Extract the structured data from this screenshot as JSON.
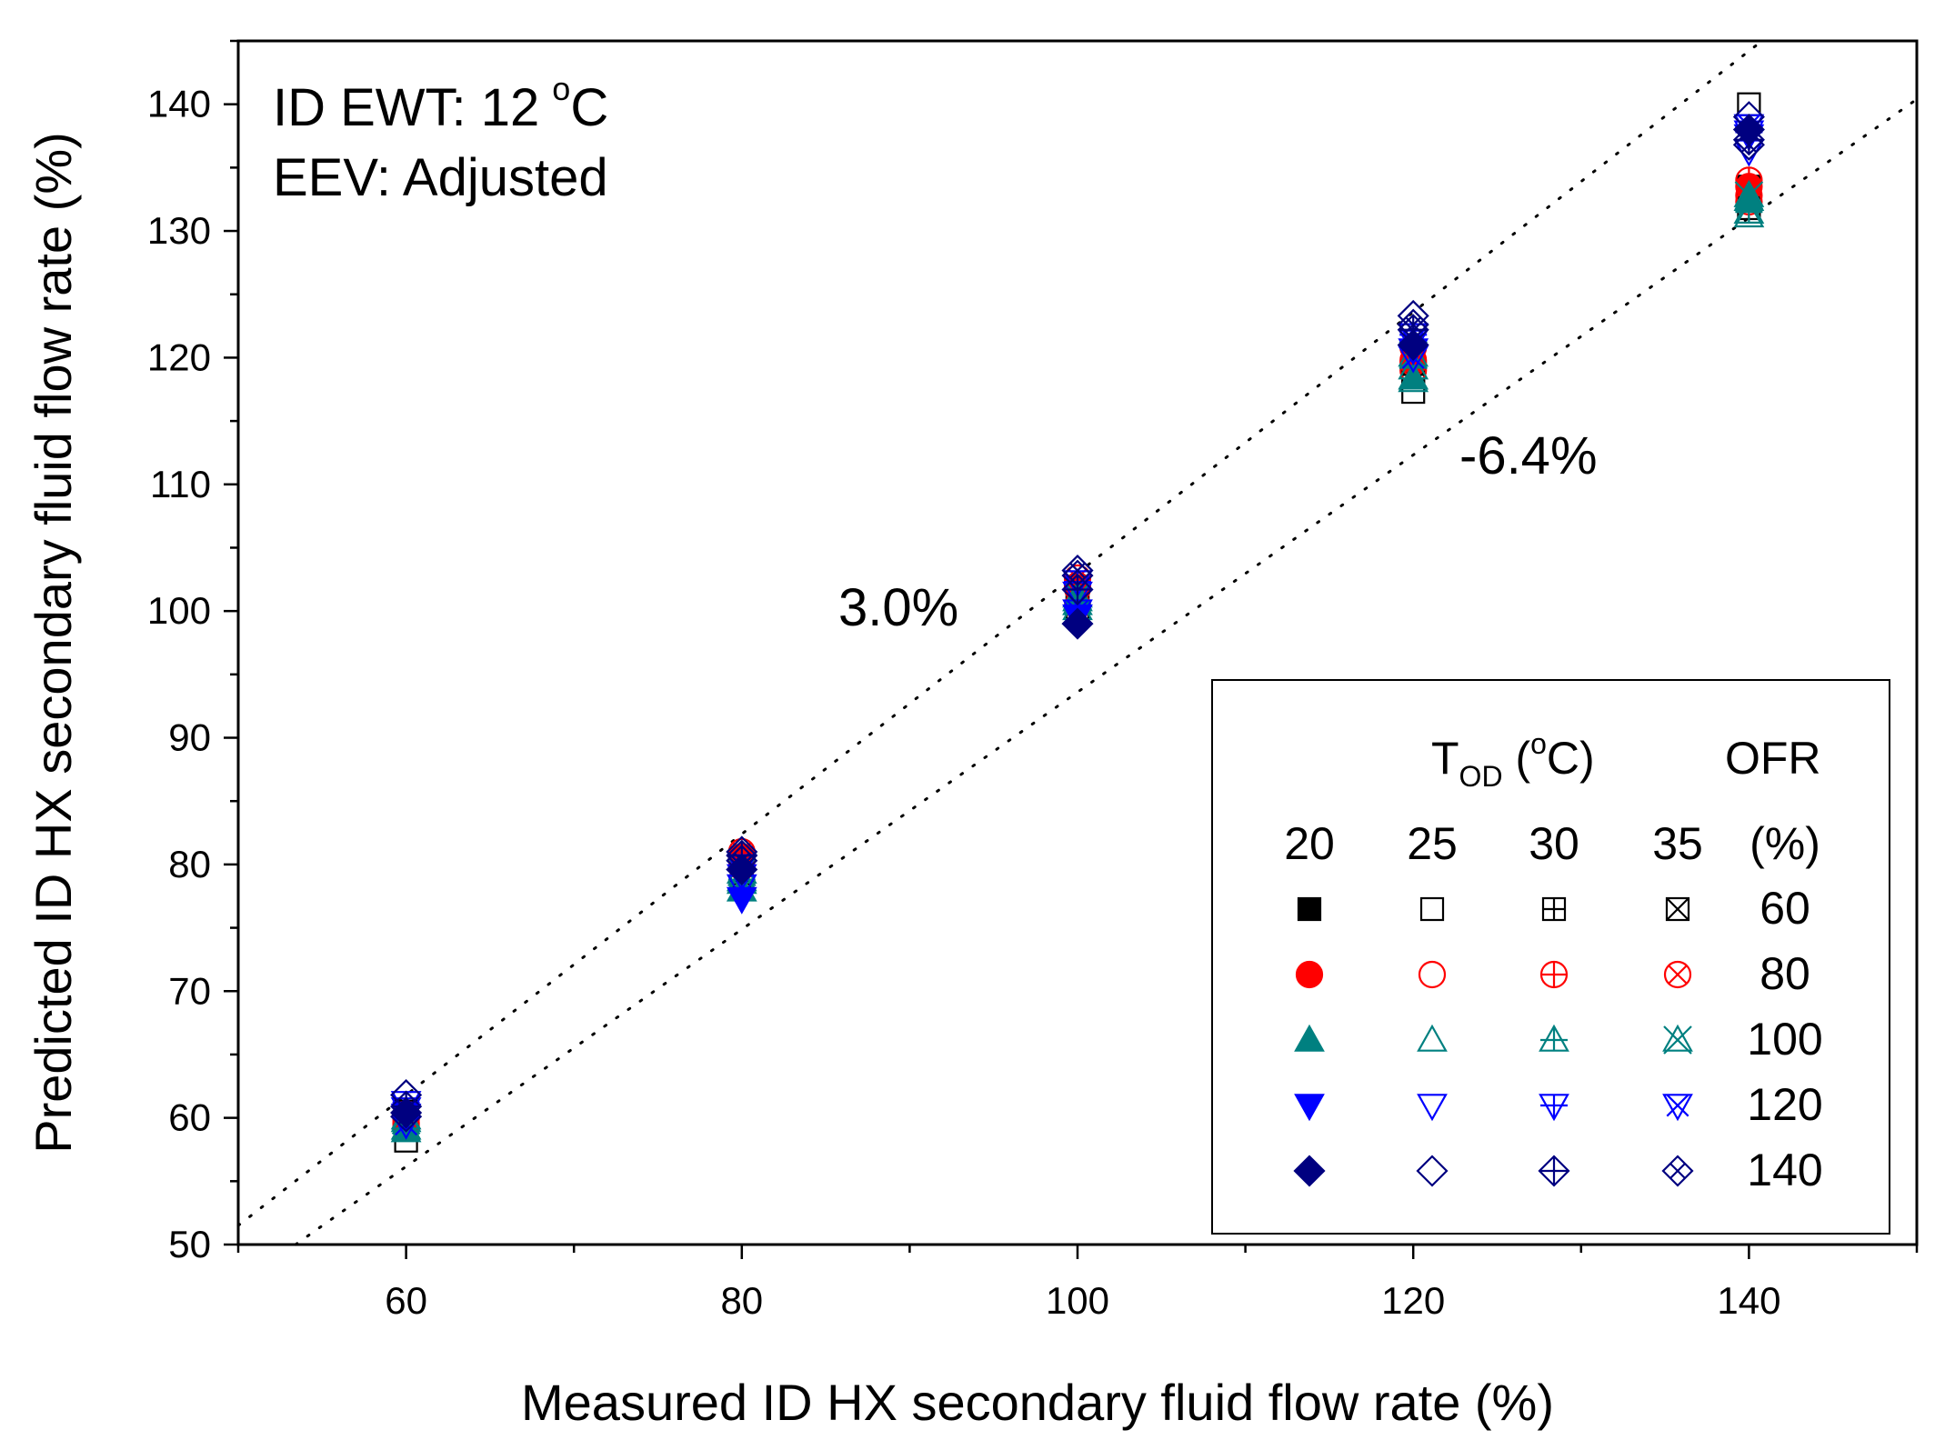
{
  "chart_data": {
    "type": "scatter",
    "title": "",
    "xlabel": "Measured ID HX secondary fluid flow rate (%)",
    "ylabel": "Predicted ID HX secondary fluid flow rate (%)",
    "xlim": [
      50,
      150
    ],
    "ylim": [
      50,
      145
    ],
    "x_ticks": [
      60,
      80,
      100,
      120,
      140
    ],
    "y_ticks": [
      50,
      60,
      70,
      80,
      90,
      100,
      110,
      120,
      130,
      140
    ],
    "annotations": [
      "ID EWT: 12 °C",
      "EEV: Adjusted"
    ],
    "annotation_parts": {
      "ewt_prefix": "ID EWT: 12",
      "ewt_sup": "o",
      "ewt_unit": "C",
      "eev": "EEV: Adjusted"
    },
    "reference_lines": [
      {
        "label": "3.0%",
        "offset_fraction": 0.03
      },
      {
        "label": "-6.4%",
        "offset_fraction": -0.064
      }
    ],
    "legend": {
      "position": "bottom-right",
      "t_header_main": "T",
      "t_header_sub": "OD",
      "t_header_open": " (",
      "t_header_sup": "o",
      "t_header_close": "C)",
      "ofr_header": "OFR",
      "ofr_unit": "(%)",
      "temperatures": [
        "20",
        "25",
        "30",
        "35"
      ],
      "flow_rates": [
        "60",
        "80",
        "100",
        "120",
        "140"
      ],
      "marker_styles": [
        "filled",
        "open",
        "cross",
        "x"
      ],
      "colors": [
        "#000000",
        "#ff0000",
        "#008080",
        "#0000ff",
        "#000080"
      ],
      "shapes": [
        "square",
        "circle",
        "triangle-up",
        "triangle-down",
        "diamond"
      ]
    },
    "series": [
      {
        "name": "T20 OFR60",
        "x": [
          60,
          80,
          100,
          120,
          140
        ],
        "y": [
          60.5,
          80.2,
          101.0,
          120.5,
          133.0
        ]
      },
      {
        "name": "T25 OFR60",
        "x": [
          60,
          80,
          100,
          120,
          140
        ],
        "y": [
          58.2,
          79.5,
          100.2,
          117.3,
          140.0
        ]
      },
      {
        "name": "T30 OFR60",
        "x": [
          60,
          80,
          100,
          120,
          140
        ],
        "y": [
          59.3,
          80.0,
          100.8,
          118.8,
          131.8
        ]
      },
      {
        "name": "T35 OFR60",
        "x": [
          60,
          80,
          100,
          120,
          140
        ],
        "y": [
          60.0,
          79.0,
          101.5,
          119.5,
          133.5
        ]
      },
      {
        "name": "T20 OFR80",
        "x": [
          60,
          80,
          100,
          120,
          140
        ],
        "y": [
          59.6,
          80.6,
          101.8,
          119.8,
          133.5
        ]
      },
      {
        "name": "T25 OFR80",
        "x": [
          60,
          80,
          100,
          120,
          140
        ],
        "y": [
          59.9,
          79.8,
          100.4,
          119.0,
          132.8
        ]
      },
      {
        "name": "T30 OFR80",
        "x": [
          60,
          80,
          100,
          120,
          140
        ],
        "y": [
          60.3,
          80.4,
          102.0,
          120.8,
          134.0
        ]
      },
      {
        "name": "T35 OFR80",
        "x": [
          60,
          80,
          100,
          120,
          140
        ],
        "y": [
          59.4,
          81.0,
          102.6,
          119.6,
          132.3
        ]
      },
      {
        "name": "T20 OFR100",
        "x": [
          60,
          80,
          100,
          120,
          140
        ],
        "y": [
          59.0,
          78.0,
          100.6,
          118.4,
          132.5
        ]
      },
      {
        "name": "T25 OFR100",
        "x": [
          60,
          80,
          100,
          120,
          140
        ],
        "y": [
          59.2,
          78.6,
          100.9,
          118.2,
          131.2
        ]
      },
      {
        "name": "T30 OFR100",
        "x": [
          60,
          80,
          100,
          120,
          140
        ],
        "y": [
          60.0,
          78.8,
          100.2,
          119.2,
          131.5
        ]
      },
      {
        "name": "T35 OFR100",
        "x": [
          60,
          80,
          100,
          120,
          140
        ],
        "y": [
          59.8,
          79.4,
          101.2,
          120.2,
          132.8
        ]
      },
      {
        "name": "T20 OFR120",
        "x": [
          60,
          80,
          100,
          120,
          140
        ],
        "y": [
          60.2,
          77.3,
          99.6,
          120.6,
          137.5
        ]
      },
      {
        "name": "T25 OFR120",
        "x": [
          60,
          80,
          100,
          120,
          140
        ],
        "y": [
          60.7,
          78.3,
          101.4,
          121.3,
          136.3
        ]
      },
      {
        "name": "T30 OFR120",
        "x": [
          60,
          80,
          100,
          120,
          140
        ],
        "y": [
          61.2,
          79.1,
          102.3,
          121.8,
          137.8
        ]
      },
      {
        "name": "T35 OFR120",
        "x": [
          60,
          80,
          100,
          120,
          140
        ],
        "y": [
          59.5,
          79.9,
          100.0,
          120.0,
          138.3
        ]
      },
      {
        "name": "T20 OFR140",
        "x": [
          60,
          80,
          100,
          120,
          140
        ],
        "y": [
          60.4,
          79.6,
          99.0,
          121.0,
          138.0
        ]
      },
      {
        "name": "T25 OFR140",
        "x": [
          60,
          80,
          100,
          120,
          140
        ],
        "y": [
          61.8,
          81.0,
          102.8,
          123.3,
          139.0
        ]
      },
      {
        "name": "T30 OFR140",
        "x": [
          60,
          80,
          100,
          120,
          140
        ],
        "y": [
          60.9,
          80.7,
          101.7,
          122.2,
          137.2
        ]
      },
      {
        "name": "T35 OFR140",
        "x": [
          60,
          80,
          100,
          120,
          140
        ],
        "y": [
          60.1,
          80.3,
          103.2,
          122.6,
          136.8
        ]
      }
    ]
  }
}
